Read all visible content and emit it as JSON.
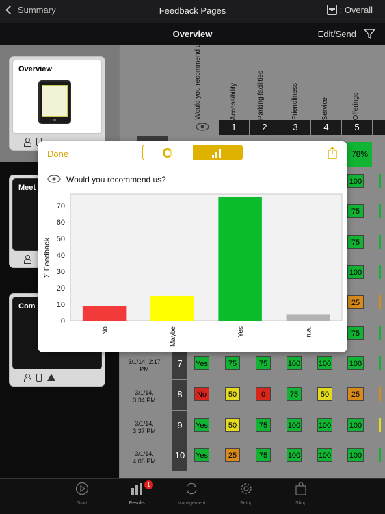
{
  "nav": {
    "back_label": "Summary",
    "title": "Feedback Pages",
    "period_label": ": Overall"
  },
  "subbar": {
    "title": "Overview",
    "edit_label": "Edit/Send"
  },
  "sidebar": {
    "cards": [
      {
        "title": "Overview"
      },
      {
        "title": "Meet"
      },
      {
        "title": "Com"
      }
    ]
  },
  "grid": {
    "columns": [
      {
        "label": "Would you recommend us?",
        "num": ""
      },
      {
        "label": "Accessibility",
        "num": "1"
      },
      {
        "label": "Parking facilities",
        "num": "2"
      },
      {
        "label": "Friendliness",
        "num": "3"
      },
      {
        "label": "Service",
        "num": "4"
      },
      {
        "label": "Offerings",
        "num": "5"
      }
    ],
    "pct_label": "78%",
    "right_col_values": [
      "100",
      "75",
      "75",
      "100",
      "25",
      "75"
    ],
    "rows": [
      {
        "date_line1": "3/1/14, 2:17",
        "date_line2": "PM",
        "num": "7",
        "cells": [
          "Yes",
          "75",
          "75",
          "100",
          "100",
          "100"
        ]
      },
      {
        "date_line1": "3/1/14,",
        "date_line2": "3:34 PM",
        "num": "8",
        "cells": [
          "No",
          "50",
          "0",
          "75",
          "50",
          "25"
        ]
      },
      {
        "date_line1": "3/1/14,",
        "date_line2": "3:37 PM",
        "num": "9",
        "cells": [
          "Yes",
          "50",
          "75",
          "100",
          "100",
          "100"
        ]
      },
      {
        "date_line1": "3/1/14,",
        "date_line2": "4:06 PM",
        "num": "10",
        "cells": [
          "Yes",
          "25",
          "75",
          "100",
          "100",
          "100"
        ]
      }
    ]
  },
  "popup": {
    "done_label": "Done",
    "question": "Would you recommend us?"
  },
  "chart_data": {
    "type": "bar",
    "categories": [
      "No",
      "Maybe",
      "Yes",
      "n.a."
    ],
    "values": [
      9,
      15,
      75,
      4
    ],
    "colors": [
      "#f23a3a",
      "#ffff00",
      "#0bbd2c",
      "#b3b3b3"
    ],
    "ylabel": "Σ Feedback",
    "ylim": [
      0,
      77
    ],
    "yticks": [
      0,
      10,
      20,
      30,
      40,
      50,
      60,
      70
    ],
    "grid": false
  },
  "tabbar": {
    "tabs": [
      {
        "label": "Start"
      },
      {
        "label": "Results",
        "badge": "1"
      },
      {
        "label": "Management"
      },
      {
        "label": "Setup"
      },
      {
        "label": "Shop"
      }
    ]
  },
  "colors": {
    "accent": "#e0b200",
    "green": "#12b533",
    "yellow": "#e3db1c",
    "orange": "#d88a1a",
    "red": "#d9261c"
  }
}
